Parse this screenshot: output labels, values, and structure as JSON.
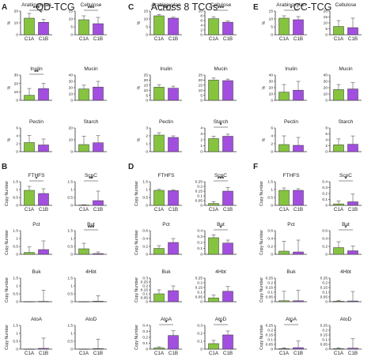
{
  "colors": {
    "C1A": "#86c440",
    "C1B": "#a24fe0",
    "axis": "#333333",
    "error": "#555555"
  },
  "categories": [
    "C1A",
    "C1B"
  ],
  "groups": [
    {
      "letter_top": "A",
      "letter_bottom": "B",
      "title": "QD-TCG"
    },
    {
      "letter_top": "C",
      "letter_bottom": "D",
      "title": "Across 8 TCGs"
    },
    {
      "letter_top": "E",
      "letter_bottom": "F",
      "title": "CC-TCG"
    }
  ],
  "chart_data": [
    {
      "group": 0,
      "section": "top",
      "title": "Arabinoxylan",
      "ylabel": "%",
      "type": "bar",
      "ylim": [
        0,
        20
      ],
      "yticks": [
        0,
        10,
        20
      ],
      "values": [
        14,
        10.5
      ],
      "errors": [
        4,
        2.5
      ],
      "sig": "***",
      "show_cats": true
    },
    {
      "group": 0,
      "section": "top",
      "title": "Cellulose",
      "ylabel": "",
      "type": "bar",
      "ylim": [
        0,
        15
      ],
      "yticks": [
        0,
        5,
        10,
        15
      ],
      "values": [
        9.5,
        7
      ],
      "errors": [
        2.5,
        4
      ],
      "sig": "***",
      "show_cats": true
    },
    {
      "group": 0,
      "section": "top",
      "title": "Inulin",
      "ylabel": "%",
      "type": "bar",
      "ylim": [
        0,
        30
      ],
      "yticks": [
        0,
        10,
        20,
        30
      ],
      "values": [
        6,
        14
      ],
      "errors": [
        8,
        6
      ],
      "sig": "**",
      "show_cats": false
    },
    {
      "group": 0,
      "section": "top",
      "title": "Mucin",
      "ylabel": "",
      "type": "bar",
      "ylim": [
        0,
        40
      ],
      "yticks": [
        0,
        10,
        20,
        30,
        40
      ],
      "values": [
        18,
        21
      ],
      "errors": [
        6,
        9
      ],
      "sig": "",
      "show_cats": false
    },
    {
      "group": 0,
      "section": "top",
      "title": "Pectin",
      "ylabel": "%",
      "type": "bar",
      "ylim": [
        0,
        6
      ],
      "yticks": [
        0,
        2,
        4,
        6
      ],
      "values": [
        2.3,
        1.7
      ],
      "errors": [
        1.8,
        1.5
      ],
      "sig": "",
      "show_cats": false
    },
    {
      "group": 0,
      "section": "top",
      "title": "Starch",
      "ylabel": "",
      "type": "bar",
      "ylim": [
        0,
        20
      ],
      "yticks": [
        0,
        10,
        20
      ],
      "values": [
        6,
        7.5
      ],
      "errors": [
        7,
        6
      ],
      "sig": "",
      "show_cats": false
    },
    {
      "group": 0,
      "section": "bottom",
      "title": "FTHFS",
      "ylabel": "Copy Number",
      "type": "bar",
      "ylim": [
        0,
        1.5
      ],
      "yticks": [
        0,
        0.5,
        1.0,
        1.5
      ],
      "values": [
        0.95,
        0.75
      ],
      "errors": [
        0.25,
        0.3
      ],
      "sig": "*",
      "show_cats": true
    },
    {
      "group": 0,
      "section": "bottom",
      "title": "ScpC",
      "ylabel": "",
      "type": "bar",
      "ylim": [
        0,
        1.5
      ],
      "yticks": [
        0,
        0.5,
        1.0,
        1.5
      ],
      "values": [
        0.02,
        0.3
      ],
      "errors": [
        0.02,
        0.6
      ],
      "sig": "**",
      "show_cats": true
    },
    {
      "group": 0,
      "section": "bottom",
      "title": "Pct",
      "ylabel": "Copy Number",
      "type": "bar",
      "ylim": [
        0,
        1.5
      ],
      "yticks": [
        0,
        0.5,
        1.0,
        1.5
      ],
      "values": [
        0.12,
        0.3
      ],
      "errors": [
        0.35,
        0.55
      ],
      "sig": "",
      "show_cats": false
    },
    {
      "group": 0,
      "section": "bottom",
      "title": "But",
      "ylabel": "",
      "type": "bar",
      "ylim": [
        0,
        1.5
      ],
      "yticks": [
        0,
        0.5,
        1.0,
        1.5
      ],
      "values": [
        0.35,
        0.05
      ],
      "errors": [
        0.35,
        0.1
      ],
      "sig": "***",
      "show_cats": false
    },
    {
      "group": 0,
      "section": "bottom",
      "title": "Buk",
      "ylabel": "Copy Number",
      "type": "bar",
      "ylim": [
        0,
        1.5
      ],
      "yticks": [
        0,
        0.5,
        1.0,
        1.5
      ],
      "values": [
        0.005,
        0.02
      ],
      "errors": [
        0.01,
        0.7
      ],
      "sig": "",
      "show_cats": false
    },
    {
      "group": 0,
      "section": "bottom",
      "title": "4Hbt",
      "ylabel": "",
      "type": "bar",
      "ylim": [
        0,
        1.5
      ],
      "yticks": [
        0,
        0.5,
        1.0,
        1.5
      ],
      "values": [
        0.005,
        0.03
      ],
      "errors": [
        0.01,
        0.35
      ],
      "sig": "",
      "show_cats": false
    },
    {
      "group": 0,
      "section": "bottom",
      "title": "AtoA",
      "ylabel": "Copy Number",
      "type": "bar",
      "ylim": [
        0,
        1.5
      ],
      "yticks": [
        0,
        0.5,
        1.0,
        1.5
      ],
      "values": [
        0.005,
        0.05
      ],
      "errors": [
        0.01,
        0.65
      ],
      "sig": "",
      "show_cats": true
    },
    {
      "group": 0,
      "section": "bottom",
      "title": "AtoD",
      "ylabel": "",
      "type": "bar",
      "ylim": [
        0,
        1.5
      ],
      "yticks": [
        0,
        0.5,
        1.0,
        1.5
      ],
      "values": [
        0.005,
        0.03
      ],
      "errors": [
        0.01,
        0.6
      ],
      "sig": "",
      "show_cats": true
    },
    {
      "group": 1,
      "section": "top",
      "title": "Arabinoxylan",
      "ylabel": "%",
      "type": "bar",
      "ylim": [
        0,
        15
      ],
      "yticks": [
        0,
        5,
        10,
        15
      ],
      "values": [
        12,
        10.5
      ],
      "errors": [
        0.8,
        0.6
      ],
      "sig": "**",
      "show_cats": true
    },
    {
      "group": 1,
      "section": "top",
      "title": "Cellulose",
      "ylabel": "",
      "type": "bar",
      "ylim": [
        0,
        10
      ],
      "yticks": [
        0,
        2,
        4,
        6,
        8,
        10
      ],
      "values": [
        6.8,
        5.3
      ],
      "errors": [
        0.8,
        0.5
      ],
      "sig": "***",
      "show_cats": true
    },
    {
      "group": 1,
      "section": "top",
      "title": "Inulin",
      "ylabel": "%",
      "type": "bar",
      "ylim": [
        0,
        25
      ],
      "yticks": [
        0,
        5,
        10,
        15,
        20,
        25
      ],
      "values": [
        13,
        12
      ],
      "errors": [
        2.5,
        2
      ],
      "sig": "",
      "show_cats": false
    },
    {
      "group": 1,
      "section": "top",
      "title": "Mucin",
      "ylabel": "",
      "type": "bar",
      "ylim": [
        0,
        25
      ],
      "yticks": [
        0,
        5,
        10,
        15,
        20,
        25
      ],
      "values": [
        20,
        19.5
      ],
      "errors": [
        2,
        1.5
      ],
      "sig": "",
      "show_cats": false
    },
    {
      "group": 1,
      "section": "top",
      "title": "Pectin",
      "ylabel": "%",
      "type": "bar",
      "ylim": [
        0,
        3
      ],
      "yticks": [
        0,
        1,
        2,
        3
      ],
      "values": [
        2.1,
        1.8
      ],
      "errors": [
        0.3,
        0.2
      ],
      "sig": "",
      "show_cats": false
    },
    {
      "group": 1,
      "section": "top",
      "title": "Starch",
      "ylabel": "",
      "type": "bar",
      "ylim": [
        0,
        4
      ],
      "yticks": [
        0,
        1,
        2,
        3,
        4
      ],
      "values": [
        2.2,
        2.6
      ],
      "errors": [
        0.4,
        0.35
      ],
      "sig": "*",
      "show_cats": false
    },
    {
      "group": 1,
      "section": "bottom",
      "title": "FTHFS",
      "ylabel": "Copy Number",
      "type": "bar",
      "ylim": [
        0,
        1.5
      ],
      "yticks": [
        0,
        0.5,
        1.0,
        1.5
      ],
      "values": [
        0.95,
        0.93
      ],
      "errors": [
        0.06,
        0.06
      ],
      "sig": "",
      "show_cats": true
    },
    {
      "group": 1,
      "section": "bottom",
      "title": "ScpC",
      "ylabel": "",
      "type": "bar",
      "ylim": [
        0,
        0.25
      ],
      "yticks": [
        0,
        0.05,
        0.1,
        0.15,
        0.2,
        0.25
      ],
      "values": [
        0.02,
        0.15
      ],
      "errors": [
        0.02,
        0.04
      ],
      "sig": "***",
      "show_cats": true
    },
    {
      "group": 1,
      "section": "bottom",
      "title": "Pct",
      "ylabel": "Copy Number",
      "type": "bar",
      "ylim": [
        0,
        0.6
      ],
      "yticks": [
        0,
        0.2,
        0.4,
        0.6
      ],
      "values": [
        0.15,
        0.3
      ],
      "errors": [
        0.07,
        0.1
      ],
      "sig": "",
      "show_cats": false
    },
    {
      "group": 1,
      "section": "bottom",
      "title": "But",
      "ylabel": "",
      "type": "bar",
      "ylim": [
        0,
        0.4
      ],
      "yticks": [
        0,
        0.1,
        0.2,
        0.3,
        0.4
      ],
      "values": [
        0.28,
        0.19
      ],
      "errors": [
        0.05,
        0.05
      ],
      "sig": "*",
      "show_cats": false
    },
    {
      "group": 1,
      "section": "bottom",
      "title": "Buk",
      "ylabel": "Copy Number",
      "type": "bar",
      "ylim": [
        0,
        0.3
      ],
      "yticks": [
        0,
        0.05,
        0.1,
        0.15,
        0.2,
        0.25,
        0.3
      ],
      "values": [
        0.1,
        0.14
      ],
      "errors": [
        0.05,
        0.06
      ],
      "sig": "",
      "show_cats": false
    },
    {
      "group": 1,
      "section": "bottom",
      "title": "4Hbt",
      "ylabel": "",
      "type": "bar",
      "ylim": [
        0,
        0.25
      ],
      "yticks": [
        0,
        0.05,
        0.1,
        0.15,
        0.2,
        0.25
      ],
      "values": [
        0.04,
        0.11
      ],
      "errors": [
        0.03,
        0.05
      ],
      "sig": "",
      "show_cats": false
    },
    {
      "group": 1,
      "section": "bottom",
      "title": "AtoA",
      "ylabel": "Copy Number",
      "type": "bar",
      "ylim": [
        0,
        0.4
      ],
      "yticks": [
        0,
        0.1,
        0.2,
        0.3,
        0.4
      ],
      "values": [
        0.02,
        0.23
      ],
      "errors": [
        0.02,
        0.08
      ],
      "sig": "*",
      "show_cats": true
    },
    {
      "group": 1,
      "section": "bottom",
      "title": "AtoD",
      "ylabel": "",
      "type": "bar",
      "ylim": [
        0,
        0.3
      ],
      "yticks": [
        0,
        0.1,
        0.2,
        0.3
      ],
      "values": [
        0.07,
        0.18
      ],
      "errors": [
        0.04,
        0.05
      ],
      "sig": "*",
      "show_cats": true
    },
    {
      "group": 2,
      "section": "top",
      "title": "Arabinoxylan",
      "ylabel": "%",
      "type": "bar",
      "ylim": [
        0,
        15
      ],
      "yticks": [
        0,
        5,
        10,
        15
      ],
      "values": [
        10.5,
        9.5
      ],
      "errors": [
        1.5,
        2
      ],
      "sig": "*",
      "show_cats": true
    },
    {
      "group": 2,
      "section": "top",
      "title": "Cellulose",
      "ylabel": "",
      "type": "bar",
      "ylim": [
        0,
        20
      ],
      "yticks": [
        0,
        5,
        10,
        15,
        20
      ],
      "values": [
        7,
        6
      ],
      "errors": [
        5,
        8
      ],
      "sig": "",
      "show_cats": true
    },
    {
      "group": 2,
      "section": "top",
      "title": "Inulin",
      "ylabel": "%",
      "type": "bar",
      "ylim": [
        0,
        40
      ],
      "yticks": [
        0,
        10,
        20,
        30,
        40
      ],
      "values": [
        13,
        16
      ],
      "errors": [
        12,
        14
      ],
      "sig": "",
      "show_cats": false
    },
    {
      "group": 2,
      "section": "top",
      "title": "Mucin",
      "ylabel": "",
      "type": "bar",
      "ylim": [
        0,
        40
      ],
      "yticks": [
        0,
        10,
        20,
        30,
        40
      ],
      "values": [
        17,
        18
      ],
      "errors": [
        8,
        10
      ],
      "sig": "",
      "show_cats": false
    },
    {
      "group": 2,
      "section": "top",
      "title": "Pectin",
      "ylabel": "%",
      "type": "bar",
      "ylim": [
        0,
        6
      ],
      "yticks": [
        0,
        2,
        4,
        6
      ],
      "values": [
        1.8,
        1.6
      ],
      "errors": [
        2.2,
        2
      ],
      "sig": "",
      "show_cats": false
    },
    {
      "group": 2,
      "section": "top",
      "title": "Starch",
      "ylabel": "",
      "type": "bar",
      "ylim": [
        0,
        8
      ],
      "yticks": [
        0,
        2,
        4,
        6,
        8
      ],
      "values": [
        2.3,
        2.5
      ],
      "errors": [
        2,
        2.8
      ],
      "sig": "",
      "show_cats": false
    },
    {
      "group": 2,
      "section": "bottom",
      "title": "FTHFS",
      "ylabel": "Copy Number",
      "type": "bar",
      "ylim": [
        0,
        1.5
      ],
      "yticks": [
        0,
        0.5,
        1.0,
        1.5
      ],
      "values": [
        0.95,
        0.95
      ],
      "errors": [
        0.15,
        0.1
      ],
      "sig": "",
      "show_cats": true
    },
    {
      "group": 2,
      "section": "bottom",
      "title": "ScpC",
      "ylabel": "",
      "type": "bar",
      "ylim": [
        0,
        0.4
      ],
      "yticks": [
        0,
        0.1,
        0.2,
        0.3,
        0.4
      ],
      "values": [
        0.025,
        0.06
      ],
      "errors": [
        0.05,
        0.13
      ],
      "sig": "*",
      "show_cats": true
    },
    {
      "group": 2,
      "section": "bottom",
      "title": "Pct",
      "ylabel": "Copy Number",
      "type": "bar",
      "ylim": [
        0,
        0.6
      ],
      "yticks": [
        0,
        0.2,
        0.4,
        0.6
      ],
      "values": [
        0.08,
        0.06
      ],
      "errors": [
        0.25,
        0.3
      ],
      "sig": "",
      "show_cats": false
    },
    {
      "group": 2,
      "section": "bottom",
      "title": "But",
      "ylabel": "",
      "type": "bar",
      "ylim": [
        0,
        0.6
      ],
      "yticks": [
        0,
        0.2,
        0.4,
        0.6
      ],
      "values": [
        0.17,
        0.09
      ],
      "errors": [
        0.15,
        0.12
      ],
      "sig": "*",
      "show_cats": false
    },
    {
      "group": 2,
      "section": "bottom",
      "title": "Buk",
      "ylabel": "Copy Number",
      "type": "bar",
      "ylim": [
        0,
        0.25
      ],
      "yticks": [
        0,
        0.05,
        0.1,
        0.15,
        0.2,
        0.25
      ],
      "values": [
        0.01,
        0.01
      ],
      "errors": [
        0.1,
        0.11
      ],
      "sig": "",
      "show_cats": false
    },
    {
      "group": 2,
      "section": "bottom",
      "title": "4Hbt",
      "ylabel": "",
      "type": "bar",
      "ylim": [
        0,
        0.25
      ],
      "yticks": [
        0,
        0.05,
        0.1,
        0.15,
        0.2,
        0.25
      ],
      "values": [
        0.005,
        0.008
      ],
      "errors": [
        0.01,
        0.1
      ],
      "sig": "",
      "show_cats": false
    },
    {
      "group": 2,
      "section": "bottom",
      "title": "AtoA",
      "ylabel": "Copy Number",
      "type": "bar",
      "ylim": [
        0,
        0.25
      ],
      "yticks": [
        0,
        0.05,
        0.1,
        0.15,
        0.2,
        0.25
      ],
      "values": [
        0.005,
        0.015
      ],
      "errors": [
        0.01,
        0.07
      ],
      "sig": "*",
      "show_cats": true
    },
    {
      "group": 2,
      "section": "bottom",
      "title": "AtoD",
      "ylabel": "",
      "type": "bar",
      "ylim": [
        0,
        0.25
      ],
      "yticks": [
        0,
        0.05,
        0.1,
        0.15,
        0.2,
        0.25
      ],
      "values": [
        0.005,
        0.01
      ],
      "errors": [
        0.01,
        0.1
      ],
      "sig": "",
      "show_cats": true
    }
  ]
}
